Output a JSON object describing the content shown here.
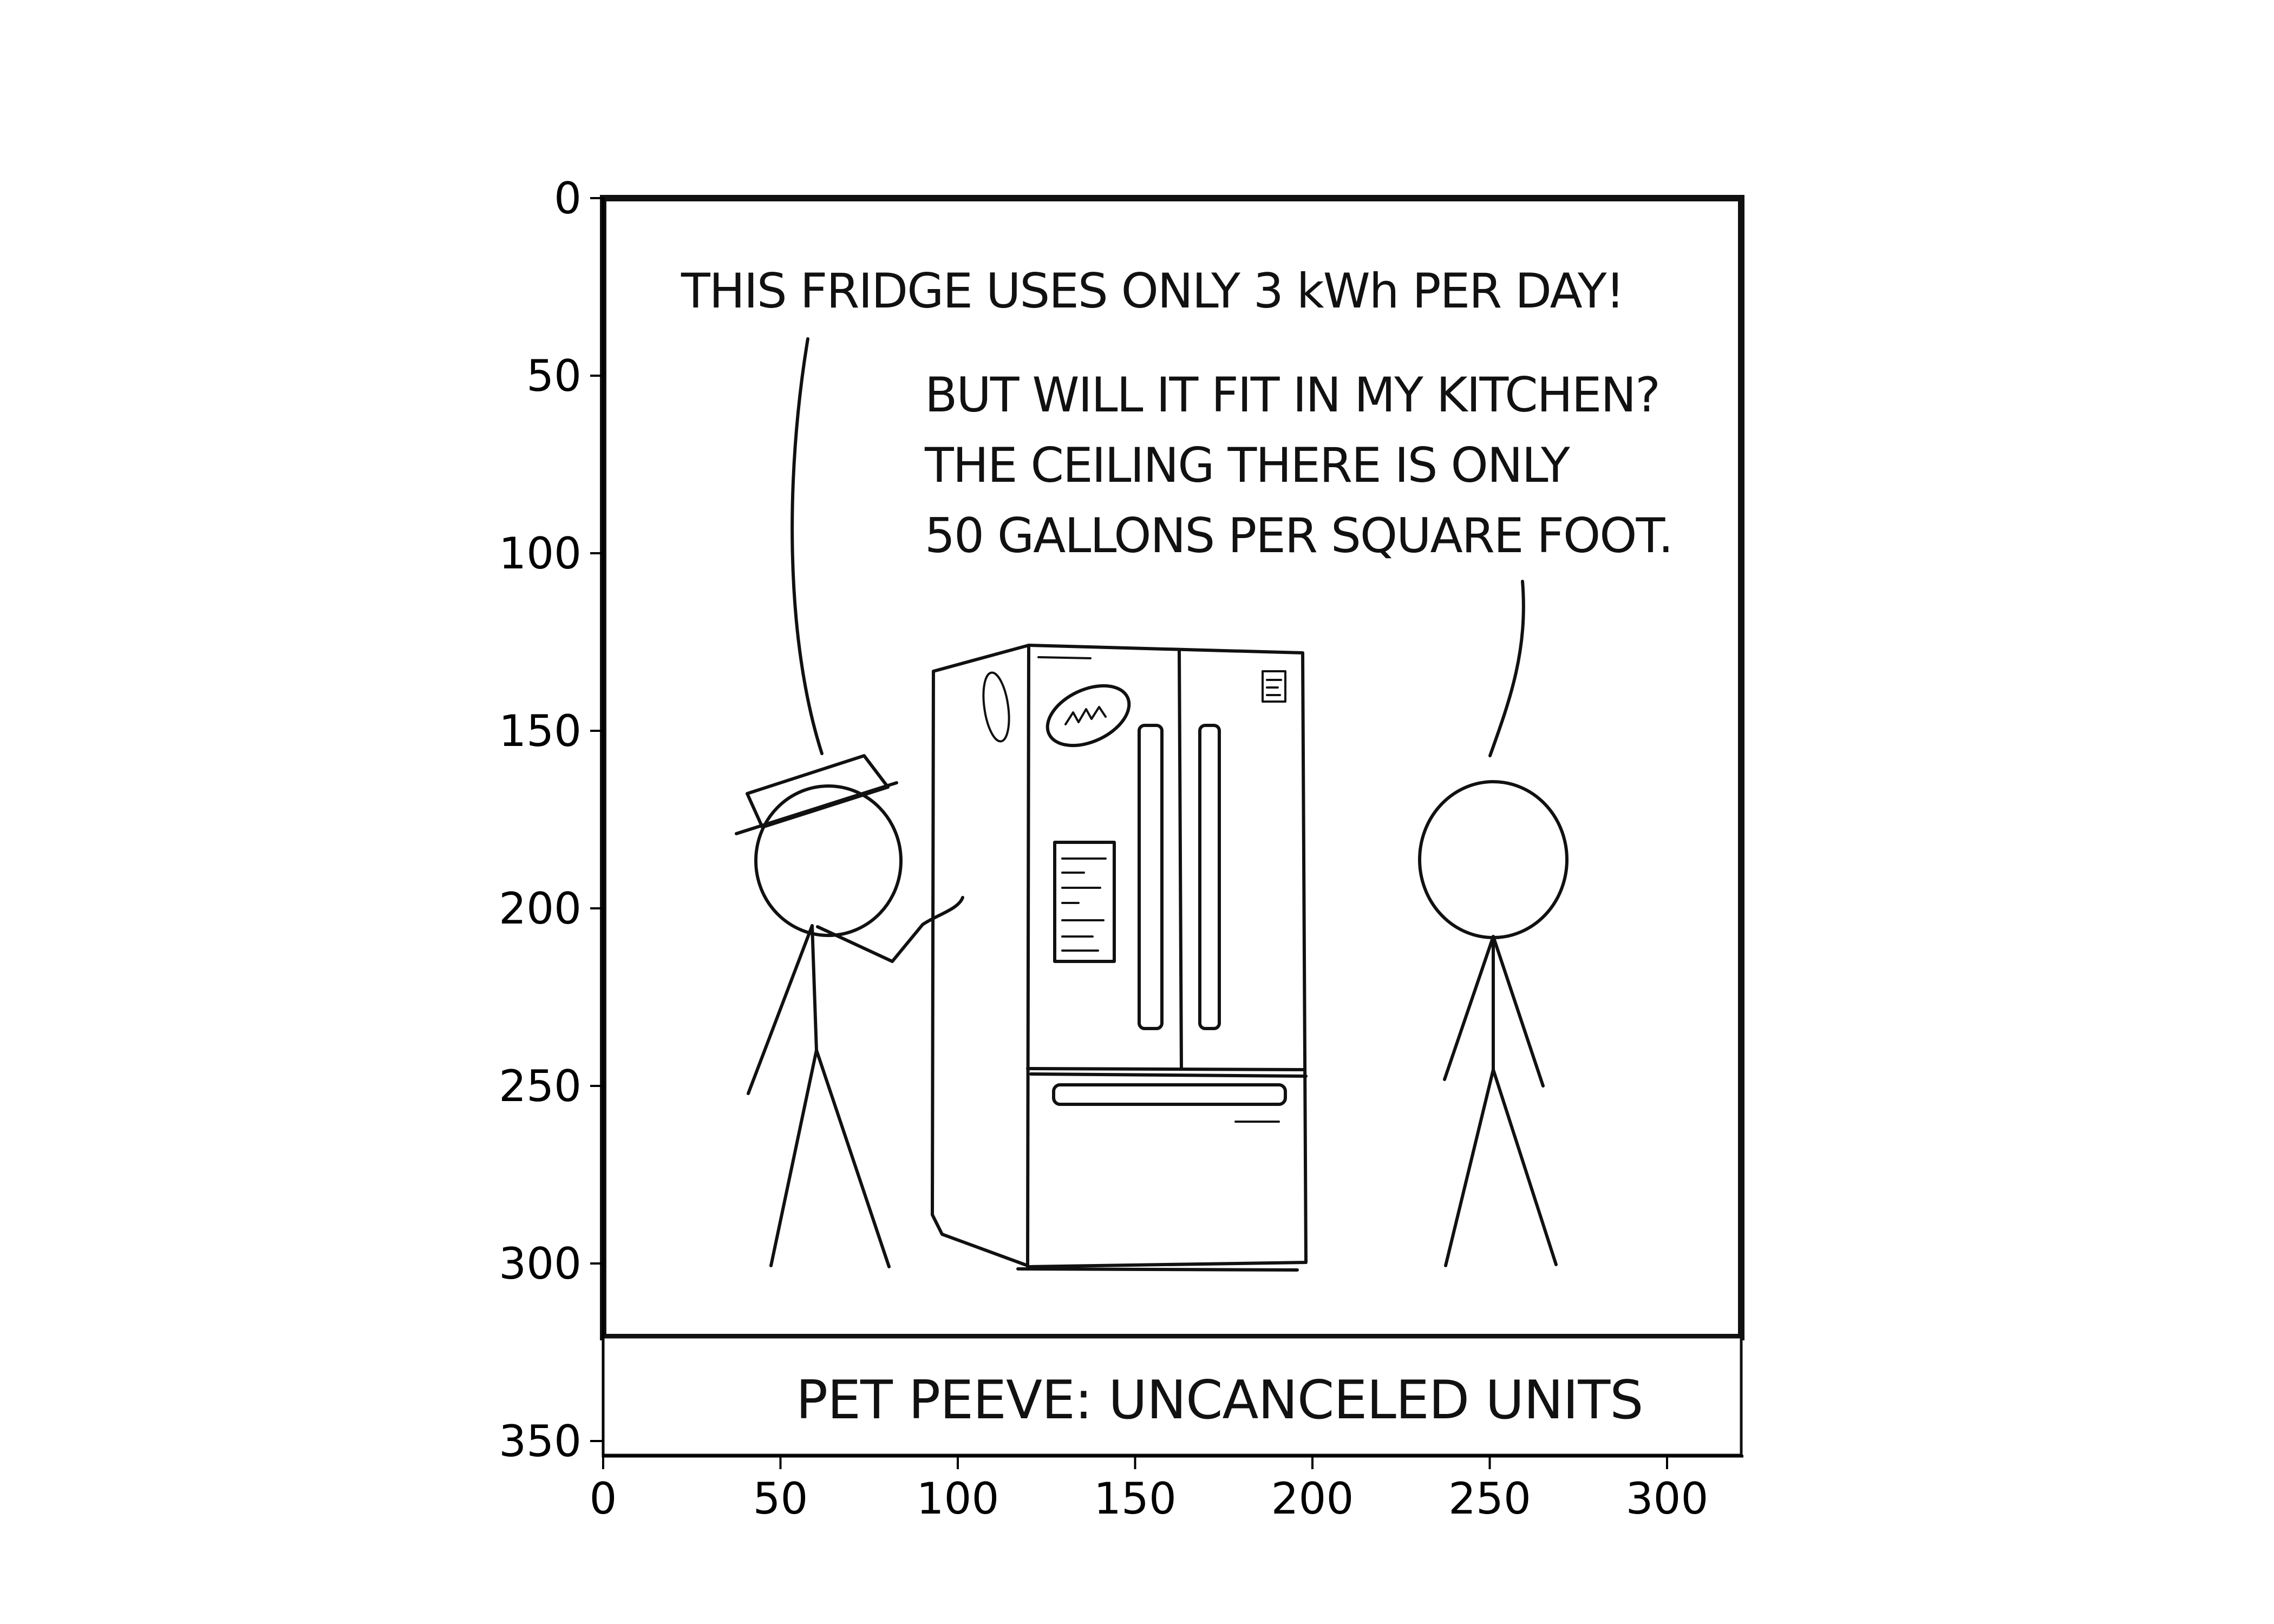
{
  "comic": {
    "speech_1": "THIS FRIDGE USES ONLY 3 kWh PER DAY!",
    "speech_2_lines": [
      "BUT WILL IT FIT IN MY KITCHEN?",
      "THE CEILING THERE IS ONLY",
      "50 GALLONS PER SQUARE FOOT."
    ],
    "caption": "PET PEEVE: UNCANCELED UNITS"
  },
  "axes": {
    "x_ticks": [
      "0",
      "50",
      "100",
      "150",
      "200",
      "250",
      "300"
    ],
    "y_ticks": [
      "0",
      "50",
      "100",
      "150",
      "200",
      "250",
      "300",
      "350"
    ],
    "x_range": [
      0,
      322
    ],
    "y_range": [
      355,
      0
    ]
  },
  "colors": {
    "ink": "#111111",
    "background": "#ffffff"
  }
}
